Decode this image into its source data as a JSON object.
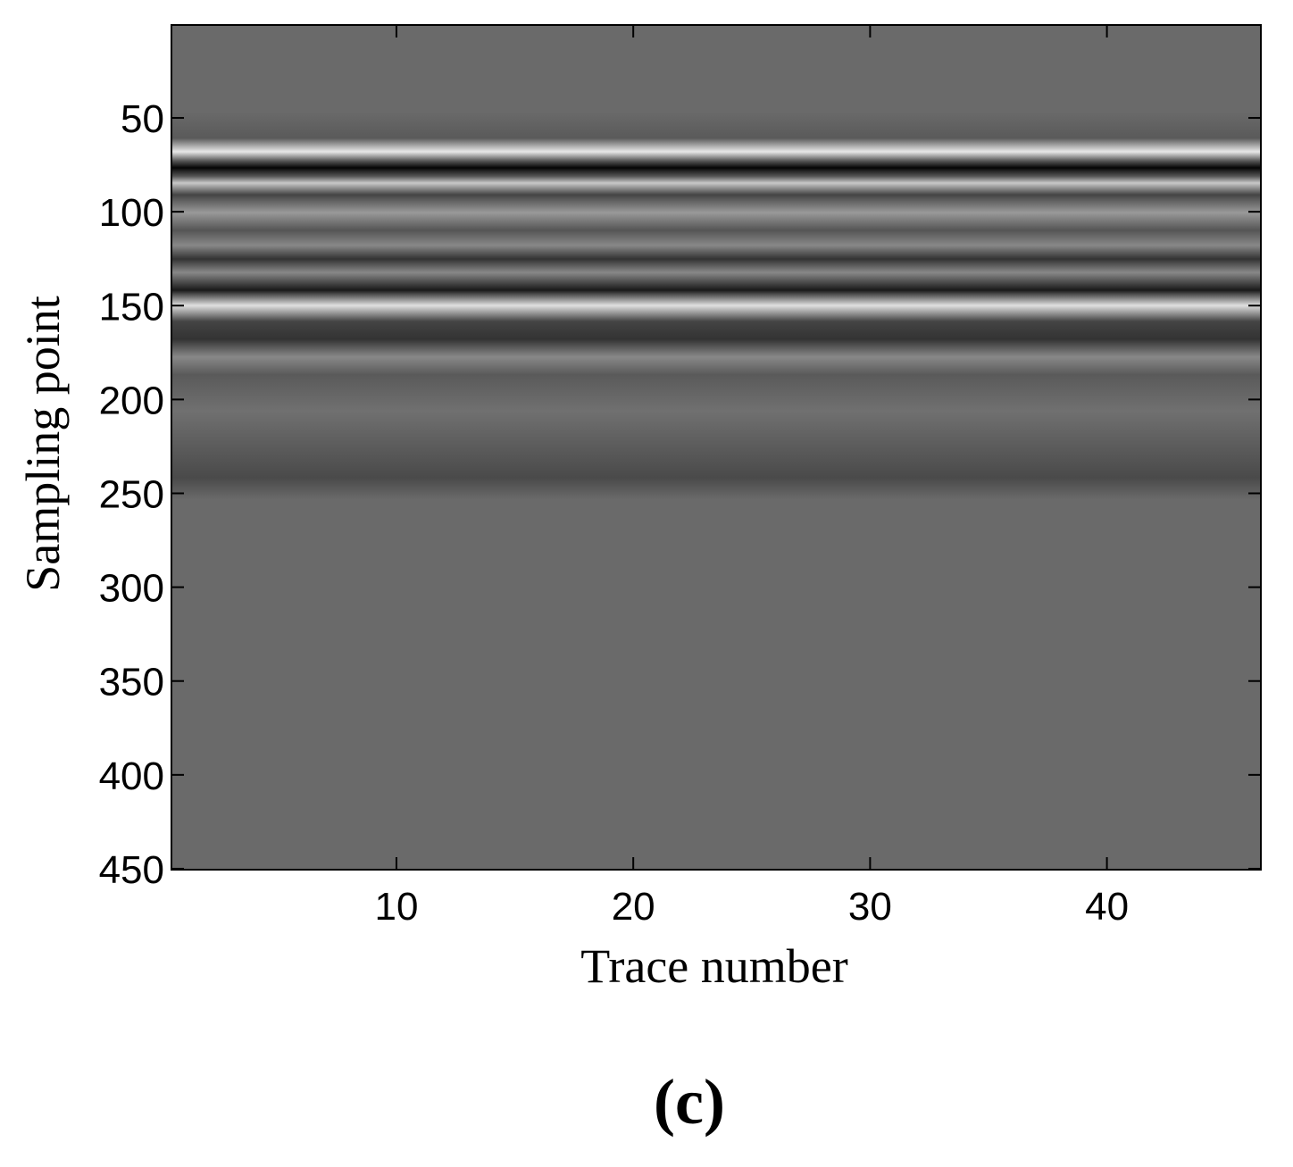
{
  "chart_data": {
    "type": "heatmap",
    "xlabel": "Trace number",
    "ylabel": "Sampling point",
    "panel_label": "(c)",
    "xlim": [
      0.5,
      46.5
    ],
    "xticks": [
      10,
      20,
      30,
      40
    ],
    "ylim": [
      0.5,
      450.5
    ],
    "yticks": [
      50,
      100,
      150,
      200,
      250,
      300,
      350,
      400,
      450
    ],
    "y_reversed": true,
    "colormap": "gray"
  }
}
